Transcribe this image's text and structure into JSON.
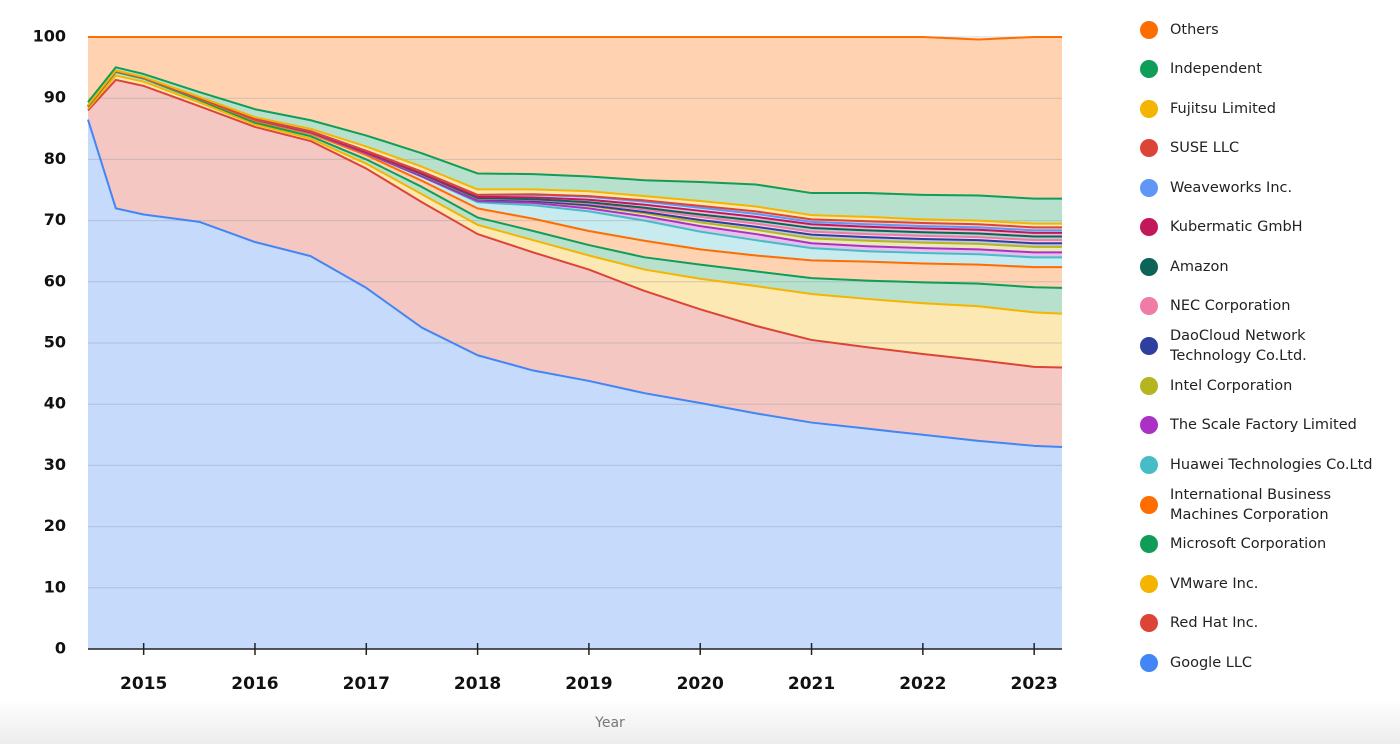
{
  "chart_data": {
    "type": "stacked-area",
    "x_label": "Year",
    "x": [
      2014.5,
      2014.75,
      2015,
      2015.5,
      2016,
      2016.5,
      2017,
      2017.5,
      2018,
      2018.5,
      2019,
      2019.5,
      2020,
      2020.5,
      2021,
      2021.5,
      2022,
      2022.5,
      2023,
      2023.25
    ],
    "xlim": [
      2014.5,
      2023.25
    ],
    "xticks": [
      2015,
      2016,
      2017,
      2018,
      2019,
      2020,
      2021,
      2022,
      2023
    ],
    "ylim": [
      0,
      100
    ],
    "yticks": [
      0,
      10,
      20,
      30,
      40,
      50,
      60,
      70,
      80,
      90,
      100
    ],
    "grid": true,
    "legend": "right",
    "series": [
      {
        "name": "Google LLC",
        "color": "#4285f4",
        "values": [
          86.5,
          72,
          71,
          69.8,
          66.5,
          64.2,
          59,
          52.5,
          48,
          45.5,
          43.8,
          41.8,
          40.2,
          38.5,
          37,
          36,
          35,
          34,
          33.2,
          33
        ]
      },
      {
        "name": "Red Hat Inc.",
        "color": "#db4437",
        "values": [
          1.5,
          21,
          21,
          18.9,
          18.8,
          18.8,
          19.5,
          20.5,
          19.8,
          19.3,
          18.2,
          16.7,
          15.3,
          14.3,
          13.5,
          13.3,
          13.2,
          13.2,
          12.9,
          13
        ]
      },
      {
        "name": "VMware Inc.",
        "color": "#f4b400",
        "values": [
          0.3,
          0.7,
          0.7,
          0.6,
          0.4,
          0.4,
          0.8,
          1.3,
          1.5,
          2,
          2.3,
          3.5,
          5,
          6.5,
          7.5,
          7.9,
          8.3,
          8.8,
          8.9,
          8.8
        ]
      },
      {
        "name": "Microsoft Corporation",
        "color": "#0f9d58",
        "values": [
          0.3,
          0.6,
          0.5,
          0.4,
          0.3,
          0.4,
          0.7,
          1.2,
          1.2,
          1.5,
          1.7,
          2,
          2.3,
          2.4,
          2.6,
          3,
          3.4,
          3.7,
          4.1,
          4.2
        ]
      },
      {
        "name": "International Business Machines Corporation",
        "color": "#ff6d01",
        "values": [
          0.1,
          0.1,
          0.1,
          0.2,
          0.3,
          0.4,
          0.7,
          1,
          1.5,
          2,
          2.3,
          2.7,
          2.5,
          2.6,
          2.9,
          3.1,
          3.1,
          3.1,
          3.3,
          3.4
        ]
      },
      {
        "name": "Huawei Technologies Co.Ltd",
        "color": "#46bdc6",
        "values": [
          0.05,
          0.05,
          0.05,
          0.1,
          0.2,
          0.2,
          0.3,
          0.7,
          1,
          2.2,
          3.2,
          3.3,
          2.9,
          2.5,
          2,
          1.7,
          1.7,
          1.7,
          1.6,
          1.6
        ]
      },
      {
        "name": "The Scale Factory Limited",
        "color": "#ab30c4",
        "values": [
          0,
          0,
          0,
          0,
          0,
          0,
          0,
          0,
          0.2,
          0.4,
          0.5,
          0.7,
          0.9,
          1,
          0.8,
          0.8,
          0.8,
          0.8,
          0.8,
          0.8
        ]
      },
      {
        "name": "Intel Corporation",
        "color": "#b5b520",
        "values": [
          0,
          0,
          0,
          0,
          0.1,
          0.1,
          0.2,
          0.2,
          0.3,
          0.3,
          0.4,
          0.5,
          0.6,
          0.7,
          0.8,
          0.9,
          0.9,
          0.9,
          0.9,
          0.9
        ]
      },
      {
        "name": "DaoCloud Network Technology Co.Ltd.",
        "color": "#2f3f9f",
        "values": [
          0,
          0,
          0,
          0,
          0,
          0,
          0,
          0,
          0,
          0,
          0.1,
          0.2,
          0.4,
          0.5,
          0.6,
          0.6,
          0.6,
          0.6,
          0.6,
          0.6
        ]
      },
      {
        "name": "NEC Corporation",
        "color": "#f07ba6",
        "values": [
          0,
          0,
          0,
          0,
          0,
          0,
          0,
          0.1,
          0.1,
          0.2,
          0.3,
          0.4,
          0.5,
          0.5,
          0.5,
          0.5,
          0.5,
          0.5,
          0.5,
          0.5
        ]
      },
      {
        "name": "Amazon",
        "color": "#0b6457",
        "values": [
          0,
          0,
          0,
          0,
          0,
          0,
          0,
          0.1,
          0.1,
          0.1,
          0.2,
          0.3,
          0.4,
          0.5,
          0.6,
          0.6,
          0.6,
          0.6,
          0.6,
          0.6
        ]
      },
      {
        "name": "Kubermatic GmbH",
        "color": "#c2185b",
        "values": [
          0,
          0,
          0,
          0,
          0,
          0,
          0,
          0.1,
          0.2,
          0.3,
          0.4,
          0.5,
          0.6,
          0.6,
          0.6,
          0.6,
          0.6,
          0.6,
          0.6,
          0.6
        ]
      },
      {
        "name": "Weaveworks Inc.",
        "color": "#5e97f6",
        "values": [
          0,
          0,
          0,
          0,
          0,
          0.1,
          0.2,
          0.3,
          0.3,
          0.4,
          0.5,
          0.5,
          0.5,
          0.5,
          0.4,
          0.4,
          0.4,
          0.4,
          0.4,
          0.4
        ]
      },
      {
        "name": "SUSE LLC",
        "color": "#db4437",
        "values": [
          0,
          0,
          0,
          0,
          0,
          0,
          0,
          0,
          0,
          0.1,
          0.1,
          0.2,
          0.3,
          0.4,
          0.4,
          0.5,
          0.5,
          0.5,
          0.5,
          0.5
        ]
      },
      {
        "name": "Fujitsu Limited",
        "color": "#f4b400",
        "values": [
          0.1,
          0.1,
          0.1,
          0.2,
          0.3,
          0.4,
          0.7,
          0.8,
          0.9,
          0.8,
          0.8,
          0.7,
          0.8,
          0.8,
          0.7,
          0.7,
          0.6,
          0.6,
          0.6,
          0.6
        ]
      },
      {
        "name": "Independent",
        "color": "#0f9d58",
        "values": [
          0.5,
          0.5,
          0.5,
          0.8,
          1.3,
          1.4,
          1.8,
          2.2,
          2.6,
          2.5,
          2.4,
          2.6,
          3.1,
          3.6,
          3.6,
          3.9,
          4,
          4.1,
          4.1,
          4.1
        ]
      },
      {
        "name": "Others",
        "color": "#ff6d01",
        "values": [
          10.65,
          4.95,
          6.05,
          9,
          11.8,
          13.6,
          16.1,
          19,
          22.3,
          22.4,
          22.8,
          23.4,
          23.7,
          24.1,
          25.5,
          25.5,
          25.8,
          25.5,
          26.4,
          26.4
        ]
      }
    ]
  }
}
